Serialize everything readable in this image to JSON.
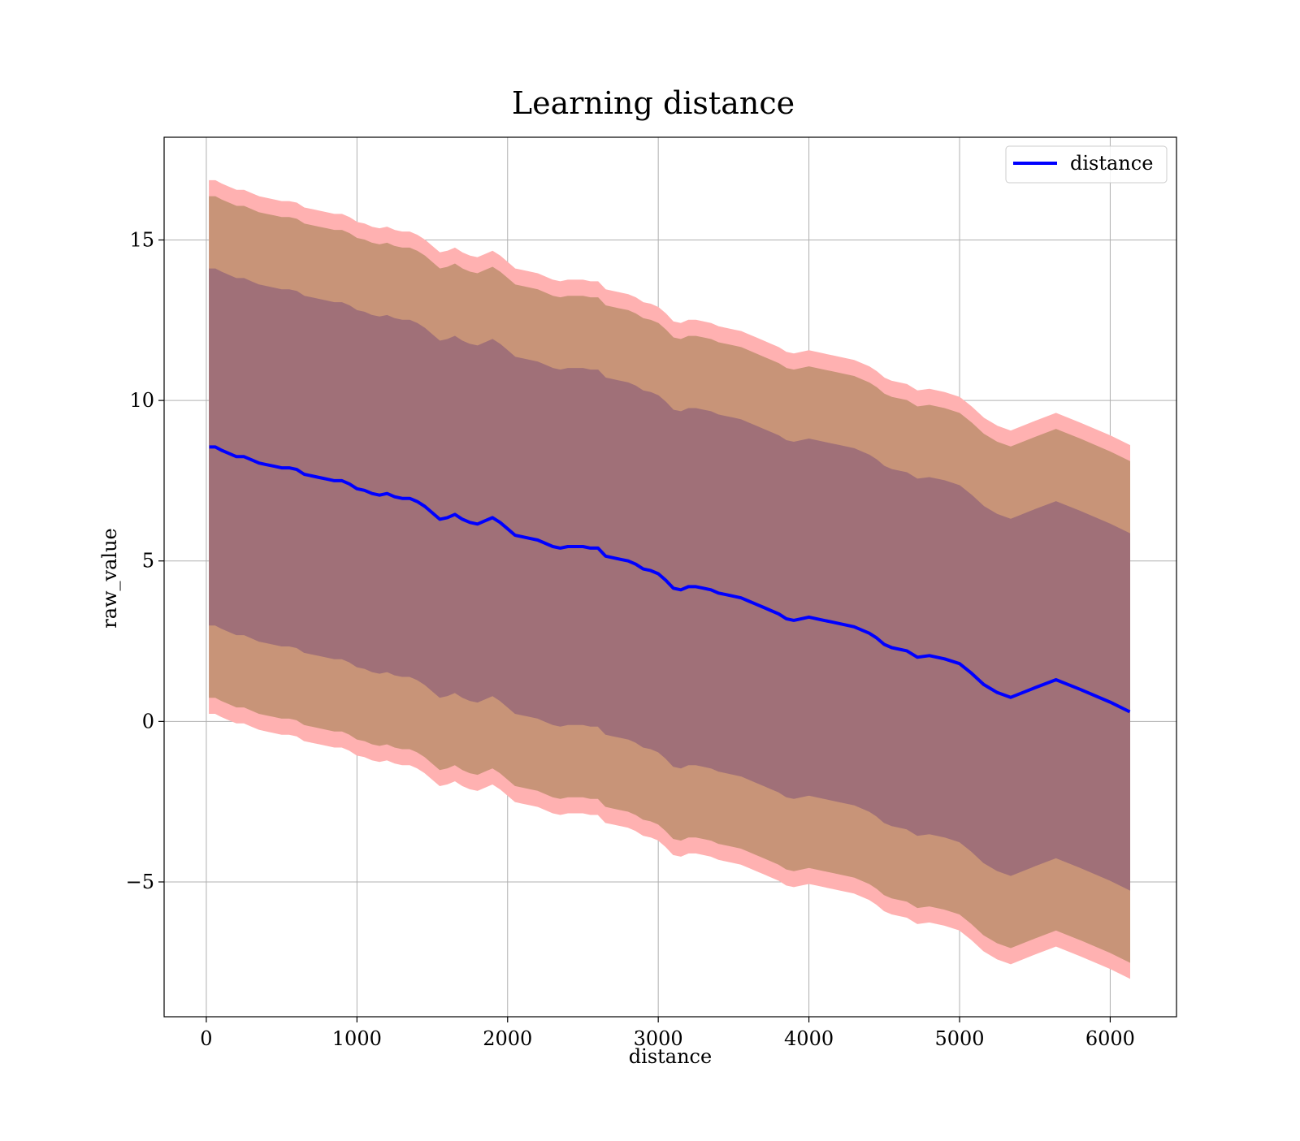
{
  "chart_data": {
    "type": "line",
    "title": "Learning distance",
    "xlabel": "distance",
    "ylabel": "raw_value",
    "xlim": [
      -280,
      6440
    ],
    "ylim": [
      -9.2,
      18.2
    ],
    "xticks": [
      0,
      1000,
      2000,
      3000,
      4000,
      5000,
      6000
    ],
    "xtick_labels": [
      "0",
      "1000",
      "2000",
      "3000",
      "4000",
      "5000",
      "6000"
    ],
    "yticks": [
      -5,
      0,
      5,
      10,
      15
    ],
    "ytick_labels": [
      "−5",
      "0",
      "5",
      "10",
      "15"
    ],
    "grid": true,
    "legend": {
      "position": "top-right",
      "entries": [
        "distance"
      ]
    },
    "colors": {
      "line": "#0000ff",
      "outer_band": "#ffb1b1",
      "middle_band": "#c89478",
      "inner_band": "#a07078",
      "grid": "#b0b0b0"
    },
    "series": [
      {
        "name": "distance",
        "x": [
          20,
          60,
          100,
          150,
          200,
          250,
          300,
          350,
          400,
          450,
          500,
          550,
          600,
          650,
          700,
          750,
          800,
          850,
          900,
          950,
          1000,
          1050,
          1100,
          1150,
          1200,
          1250,
          1300,
          1350,
          1400,
          1450,
          1500,
          1550,
          1600,
          1650,
          1700,
          1750,
          1800,
          1850,
          1900,
          1950,
          2000,
          2050,
          2100,
          2150,
          2200,
          2250,
          2300,
          2350,
          2400,
          2450,
          2500,
          2550,
          2600,
          2650,
          2700,
          2750,
          2800,
          2850,
          2900,
          2950,
          3000,
          3050,
          3100,
          3150,
          3200,
          3250,
          3300,
          3350,
          3400,
          3450,
          3500,
          3550,
          3600,
          3650,
          3700,
          3750,
          3800,
          3850,
          3900,
          3950,
          4000,
          4050,
          4100,
          4150,
          4200,
          4300,
          4400,
          4450,
          4500,
          4550,
          4650,
          4720,
          4800,
          4900,
          5000,
          5080,
          5160,
          5250,
          5340,
          5500,
          5640,
          5800,
          6000,
          6130
        ],
        "y": [
          8.55,
          8.55,
          8.45,
          8.35,
          8.25,
          8.25,
          8.15,
          8.05,
          8.0,
          7.95,
          7.9,
          7.9,
          7.85,
          7.7,
          7.65,
          7.6,
          7.55,
          7.5,
          7.5,
          7.4,
          7.25,
          7.2,
          7.1,
          7.05,
          7.1,
          7.0,
          6.95,
          6.95,
          6.85,
          6.7,
          6.5,
          6.3,
          6.35,
          6.45,
          6.3,
          6.2,
          6.15,
          6.25,
          6.35,
          6.2,
          6.0,
          5.8,
          5.75,
          5.7,
          5.65,
          5.55,
          5.45,
          5.4,
          5.45,
          5.45,
          5.45,
          5.4,
          5.4,
          5.15,
          5.1,
          5.05,
          5.0,
          4.9,
          4.75,
          4.7,
          4.6,
          4.4,
          4.15,
          4.1,
          4.2,
          4.2,
          4.15,
          4.1,
          4.0,
          3.95,
          3.9,
          3.85,
          3.75,
          3.65,
          3.55,
          3.45,
          3.35,
          3.2,
          3.15,
          3.2,
          3.25,
          3.2,
          3.15,
          3.1,
          3.05,
          2.95,
          2.75,
          2.6,
          2.4,
          2.3,
          2.2,
          2.0,
          2.05,
          1.95,
          1.8,
          1.5,
          1.15,
          0.9,
          0.75,
          1.05,
          1.3,
          1.0,
          0.6,
          0.3
        ]
      }
    ],
    "bands": [
      {
        "level": "outer",
        "width_upper": 8.3,
        "width_lower": 8.3
      },
      {
        "level": "middle",
        "width_upper": 7.8,
        "width_lower": 7.8
      },
      {
        "level": "inner",
        "width_upper": 5.55,
        "width_lower": 5.55
      }
    ]
  }
}
